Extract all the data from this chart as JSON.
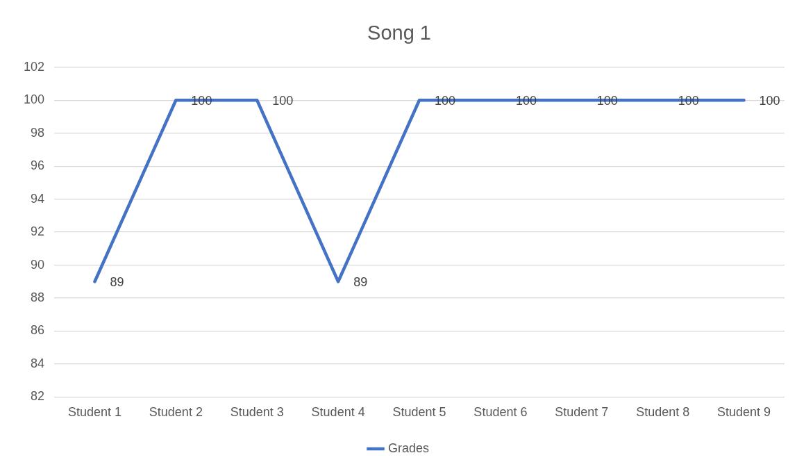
{
  "chart_data": {
    "type": "line",
    "title": "Song 1",
    "categories": [
      "Student 1",
      "Student 2",
      "Student 3",
      "Student 4",
      "Student 5",
      "Student 6",
      "Student 7",
      "Student 8",
      "Student 9"
    ],
    "series": [
      {
        "name": "Grades",
        "color": "#4472c4",
        "values": [
          89,
          100,
          100,
          89,
          100,
          100,
          100,
          100,
          100
        ]
      }
    ],
    "ylim": [
      82,
      102
    ],
    "yticks": [
      82,
      84,
      86,
      88,
      90,
      92,
      94,
      96,
      98,
      100,
      102
    ],
    "grid": "y",
    "legend": "bottom",
    "marker": "none",
    "line_style": "solid",
    "data_labels": true
  }
}
